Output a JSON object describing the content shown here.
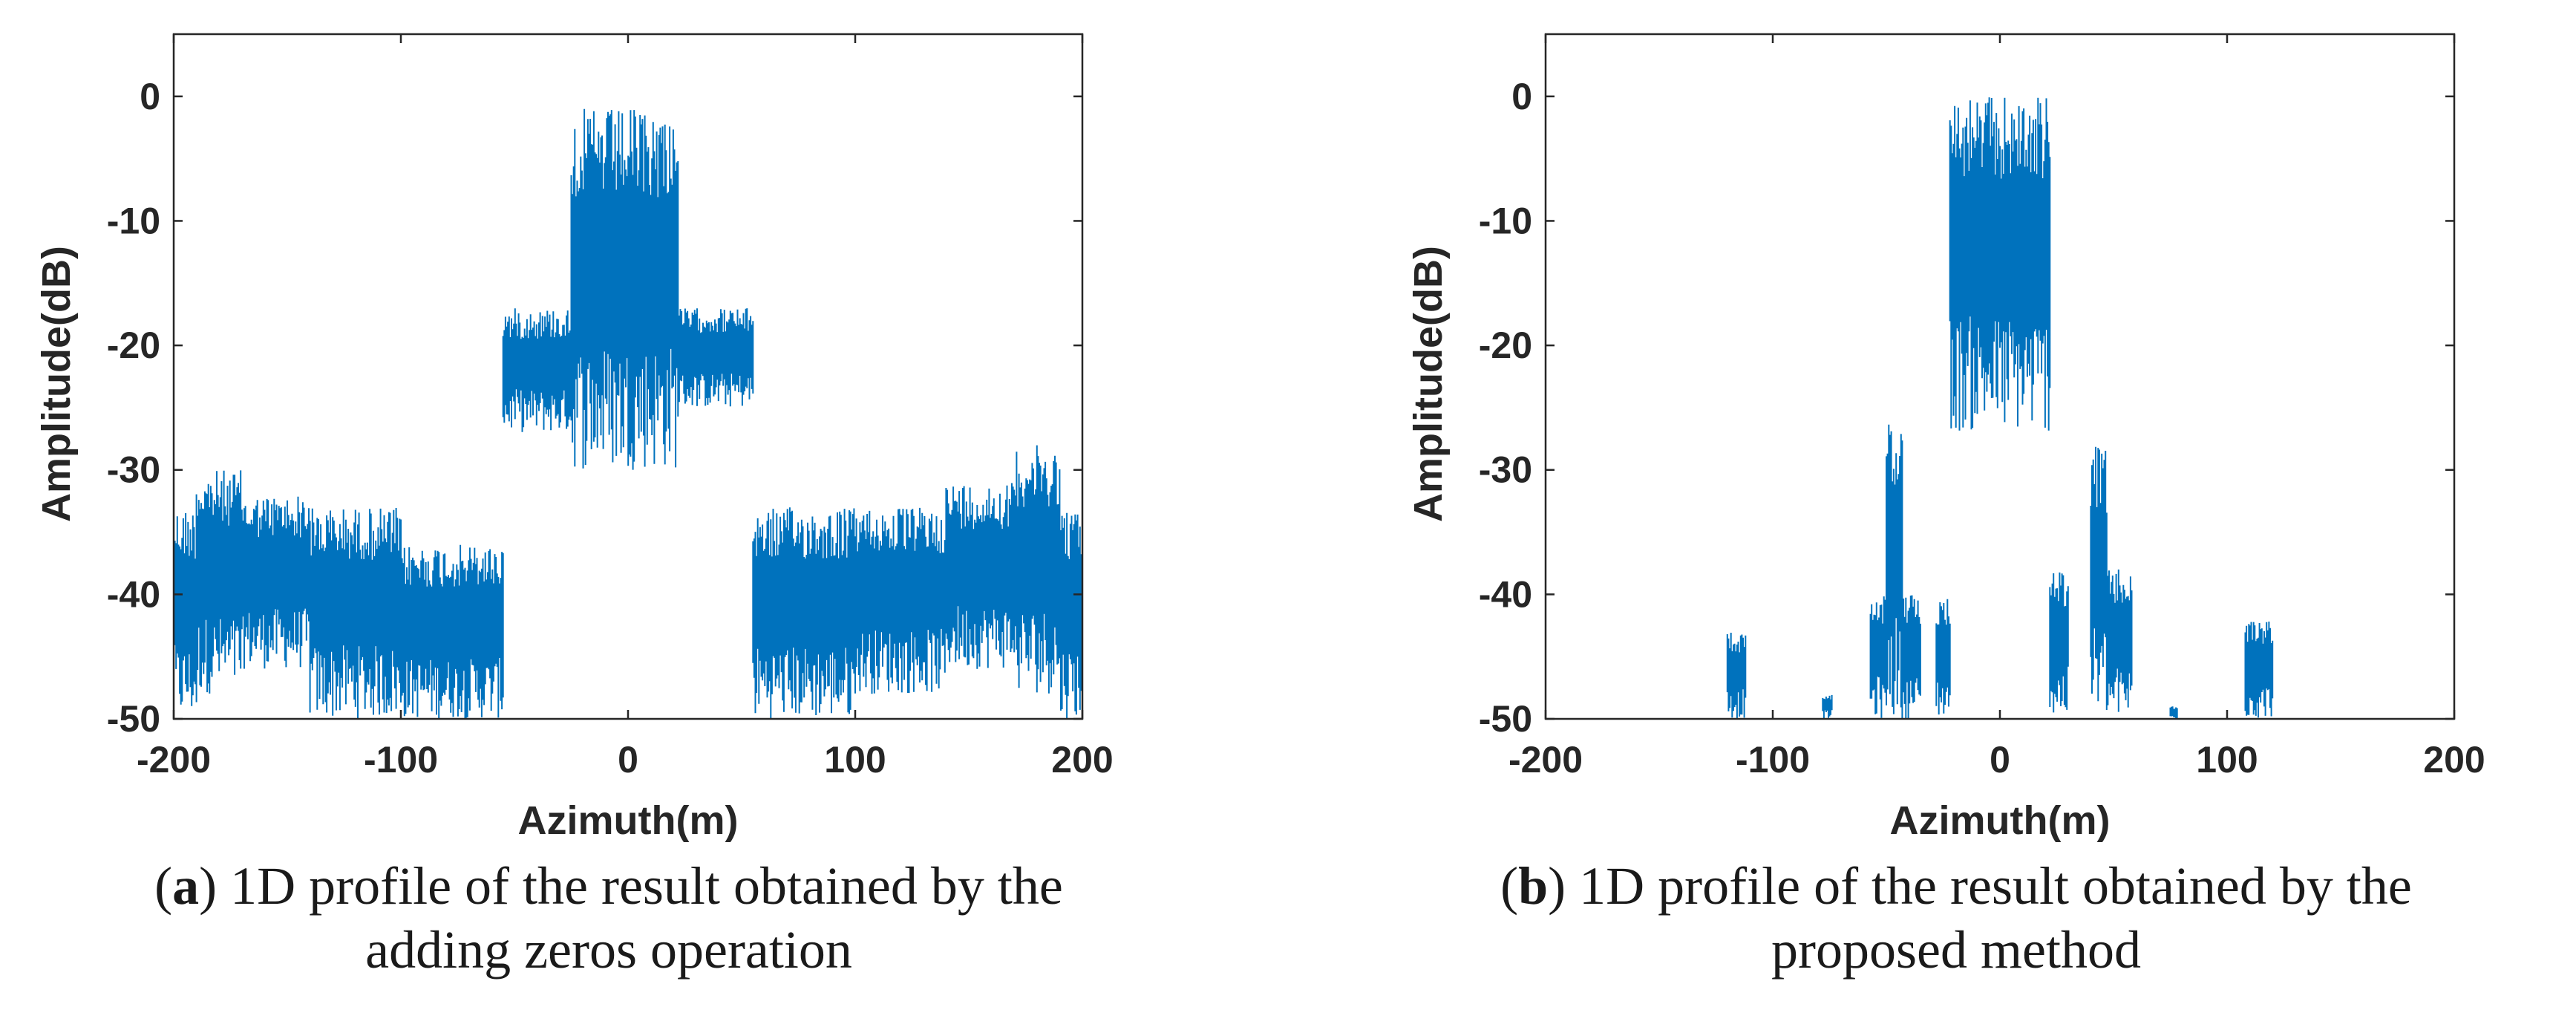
{
  "figure": {
    "panels": [
      {
        "id": "a",
        "caption_label": "a",
        "caption_line1": "1D profile of the result obtained by the",
        "caption_line2": "adding zeros operation"
      },
      {
        "id": "b",
        "caption_label": "b",
        "caption_line1": "1D profile of the result obtained by the",
        "caption_line2": "proposed method"
      }
    ]
  },
  "chart_data": [
    {
      "type": "line",
      "panel": "a",
      "title": "",
      "xlabel": "Azimuth(m)",
      "ylabel": "Amplitude(dB)",
      "xlim": [
        -200,
        200
      ],
      "ylim": [
        -50,
        5
      ],
      "xticks": [
        -200,
        -100,
        0,
        100,
        200
      ],
      "yticks": [
        0,
        -10,
        -20,
        -30,
        -40,
        -50
      ],
      "xtick_labels": [
        "-200",
        "-100",
        "0",
        "100",
        "200"
      ],
      "ytick_labels": [
        "0",
        "-10",
        "-20",
        "-30",
        "-40",
        "-50"
      ],
      "grid": false,
      "series": [
        {
          "name": "profile",
          "color": "#0072BD",
          "style": "dense-oscillating",
          "segments": [
            {
              "x_start": -200,
              "x_end": -190,
              "upper": -33,
              "lower": -50
            },
            {
              "x_start": -190,
              "x_end": -170,
              "upper": -30,
              "lower": -48
            },
            {
              "x_start": -170,
              "x_end": -140,
              "upper": -32,
              "lower": -46
            },
            {
              "x_start": -140,
              "x_end": -100,
              "upper": -33,
              "lower": -50
            },
            {
              "x_start": -100,
              "x_end": -55,
              "upper": -36,
              "lower": -50
            },
            {
              "x_start": -55,
              "x_end": -25,
              "upper": -17,
              "lower": -27
            },
            {
              "x_start": -25,
              "x_end": 22,
              "upper": -1,
              "lower": -30
            },
            {
              "x_start": 22,
              "x_end": 55,
              "upper": -17,
              "lower": -25
            },
            {
              "x_start": 55,
              "x_end": 100,
              "upper": -33,
              "lower": -50
            },
            {
              "x_start": 100,
              "x_end": 140,
              "upper": -33,
              "lower": -48
            },
            {
              "x_start": 140,
              "x_end": 170,
              "upper": -31,
              "lower": -46
            },
            {
              "x_start": 170,
              "x_end": 190,
              "upper": -28,
              "lower": -48
            },
            {
              "x_start": 190,
              "x_end": 200,
              "upper": -33,
              "lower": -50
            }
          ]
        }
      ]
    },
    {
      "type": "line",
      "panel": "b",
      "title": "",
      "xlabel": "Azimuth(m)",
      "ylabel": "Amplitude(dB)",
      "xlim": [
        -200,
        200
      ],
      "ylim": [
        -50,
        5
      ],
      "xticks": [
        -200,
        -100,
        0,
        100,
        200
      ],
      "yticks": [
        0,
        -10,
        -20,
        -30,
        -40,
        -50
      ],
      "xtick_labels": [
        "-200",
        "-100",
        "0",
        "100",
        "200"
      ],
      "ytick_labels": [
        "0",
        "-10",
        "-20",
        "-30",
        "-40",
        "-50"
      ],
      "grid": false,
      "series": [
        {
          "name": "profile",
          "color": "#0072BD",
          "style": "dense-oscillating",
          "segments": [
            {
              "x_start": -120,
              "x_end": -112,
              "upper": -43,
              "lower": -50
            },
            {
              "x_start": -78,
              "x_end": -74,
              "upper": -48,
              "lower": -50
            },
            {
              "x_start": -57,
              "x_end": -50,
              "upper": -40,
              "lower": -50
            },
            {
              "x_start": -50,
              "x_end": -43,
              "upper": -26,
              "lower": -50
            },
            {
              "x_start": -43,
              "x_end": -35,
              "upper": -40,
              "lower": -50
            },
            {
              "x_start": -28,
              "x_end": -22,
              "upper": -40,
              "lower": -50
            },
            {
              "x_start": -22,
              "x_end": 22,
              "upper": 0,
              "lower": -27
            },
            {
              "x_start": 22,
              "x_end": 30,
              "upper": -38,
              "lower": -50
            },
            {
              "x_start": 40,
              "x_end": 47,
              "upper": -28,
              "lower": -50
            },
            {
              "x_start": 47,
              "x_end": 58,
              "upper": -38,
              "lower": -50
            },
            {
              "x_start": 75,
              "x_end": 78,
              "upper": -49,
              "lower": -50
            },
            {
              "x_start": 108,
              "x_end": 120,
              "upper": -42,
              "lower": -50
            }
          ]
        }
      ]
    }
  ]
}
